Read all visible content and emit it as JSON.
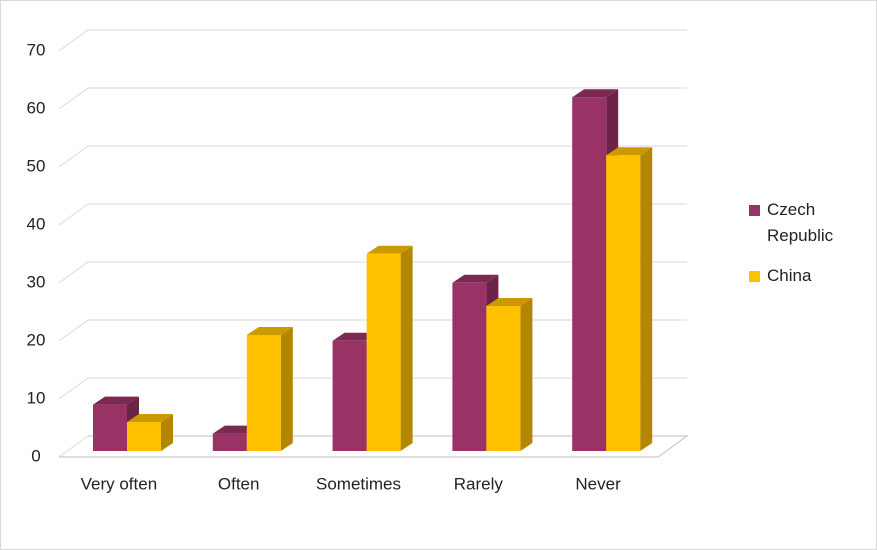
{
  "chart_data": {
    "type": "bar3d",
    "categories": [
      "Very often",
      "Often",
      "Sometimes",
      "Rarely",
      "Never"
    ],
    "series": [
      {
        "name": "Czech Republic",
        "color": "#993366",
        "values": [
          8,
          3,
          19,
          29,
          61
        ]
      },
      {
        "name": "China",
        "color": "#ffc000",
        "values": [
          5,
          20,
          34,
          25,
          51
        ]
      }
    ],
    "ylim": [
      0,
      70
    ],
    "yticks": [
      0,
      10,
      20,
      30,
      40,
      50,
      60,
      70
    ],
    "grid": true,
    "legend": "right"
  }
}
